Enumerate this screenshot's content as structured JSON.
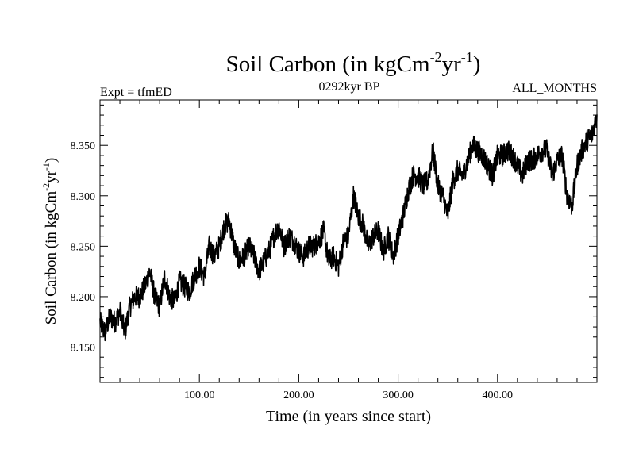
{
  "chart_data": {
    "type": "line",
    "title": "Soil Carbon (in kgCm",
    "title_sup1": "-2",
    "title_mid": "yr",
    "title_sup2": "-1",
    "title_end": ")",
    "subtitle_left": "Expt = tfmED",
    "subtitle_center": "0292kyr BP",
    "subtitle_right": "ALL_MONTHS",
    "xlabel": "Time (in years since start)",
    "ylabel_main": "Soil Carbon (in kgCm",
    "ylabel_sup1": "-2",
    "ylabel_mid": "yr",
    "ylabel_sup2": "-1",
    "ylabel_end": ")",
    "xlim": [
      0,
      500
    ],
    "ylim": [
      8.115,
      8.395
    ],
    "x_ticks": [
      100,
      200,
      300,
      400
    ],
    "x_tick_labels": [
      "100.00",
      "200.00",
      "300.00",
      "400.00"
    ],
    "y_ticks": [
      8.15,
      8.2,
      8.25,
      8.3,
      8.35
    ],
    "y_tick_labels": [
      "8.150",
      "8.200",
      "8.250",
      "8.300",
      "8.350"
    ],
    "grid": false,
    "series": [
      {
        "name": "Soil Carbon",
        "color": "#000000",
        "x": [
          0,
          5,
          10,
          15,
          20,
          25,
          30,
          35,
          40,
          45,
          50,
          55,
          60,
          65,
          70,
          75,
          80,
          85,
          90,
          95,
          100,
          105,
          110,
          115,
          120,
          125,
          130,
          135,
          140,
          145,
          150,
          155,
          160,
          165,
          170,
          175,
          180,
          185,
          190,
          195,
          200,
          205,
          210,
          215,
          220,
          225,
          230,
          235,
          240,
          245,
          250,
          255,
          260,
          265,
          270,
          275,
          280,
          285,
          290,
          295,
          300,
          305,
          310,
          315,
          320,
          325,
          330,
          335,
          340,
          345,
          350,
          355,
          360,
          365,
          370,
          375,
          380,
          385,
          390,
          395,
          400,
          405,
          410,
          415,
          420,
          425,
          430,
          435,
          440,
          445,
          450,
          455,
          460,
          465,
          470,
          475,
          480,
          485,
          490,
          495,
          500
        ],
        "values": [
          8.175,
          8.165,
          8.18,
          8.175,
          8.185,
          8.165,
          8.19,
          8.2,
          8.2,
          8.21,
          8.225,
          8.2,
          8.19,
          8.22,
          8.2,
          8.195,
          8.215,
          8.21,
          8.205,
          8.22,
          8.23,
          8.22,
          8.25,
          8.24,
          8.25,
          8.27,
          8.275,
          8.25,
          8.235,
          8.24,
          8.25,
          8.24,
          8.225,
          8.235,
          8.245,
          8.26,
          8.27,
          8.25,
          8.26,
          8.255,
          8.245,
          8.24,
          8.25,
          8.25,
          8.255,
          8.265,
          8.235,
          8.24,
          8.23,
          8.255,
          8.26,
          8.3,
          8.28,
          8.27,
          8.25,
          8.26,
          8.265,
          8.245,
          8.26,
          8.24,
          8.26,
          8.28,
          8.305,
          8.32,
          8.32,
          8.31,
          8.315,
          8.345,
          8.31,
          8.3,
          8.28,
          8.315,
          8.325,
          8.32,
          8.335,
          8.35,
          8.345,
          8.34,
          8.33,
          8.32,
          8.34,
          8.34,
          8.345,
          8.34,
          8.33,
          8.32,
          8.335,
          8.335,
          8.34,
          8.345,
          8.345,
          8.32,
          8.335,
          8.34,
          8.3,
          8.29,
          8.33,
          8.345,
          8.355,
          8.36,
          8.38
        ]
      }
    ]
  }
}
